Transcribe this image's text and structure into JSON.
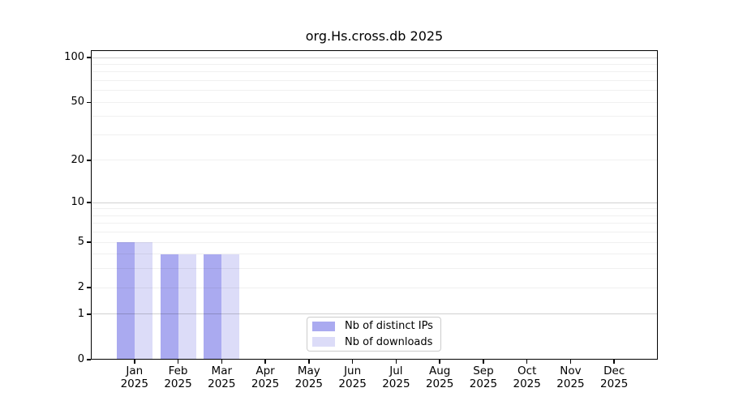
{
  "page": {
    "background": "#ffffff"
  },
  "chart_data": {
    "type": "bar",
    "title": "org.Hs.cross.db 2025",
    "categories": [
      "Jan",
      "Feb",
      "Mar",
      "Apr",
      "May",
      "Jun",
      "Jul",
      "Aug",
      "Sep",
      "Oct",
      "Nov",
      "Dec"
    ],
    "x_year": "2025",
    "series": [
      {
        "name": "Nb of distinct IPs",
        "color": "#aaaaf0",
        "values": [
          5,
          4,
          4,
          0,
          0,
          0,
          0,
          0,
          0,
          0,
          0,
          0
        ]
      },
      {
        "name": "Nb of downloads",
        "color": "#dcdcf8",
        "values": [
          5,
          4,
          4,
          0,
          0,
          0,
          0,
          0,
          0,
          0,
          0,
          0
        ]
      }
    ],
    "y_scale": "log1p",
    "ylim": [
      0,
      112
    ],
    "y_ticks": [
      0,
      1,
      2,
      5,
      10,
      20,
      50,
      100
    ],
    "y_gridlines_major": [
      1,
      10,
      100
    ],
    "y_gridlines_minor": [
      2,
      3,
      4,
      5,
      6,
      7,
      8,
      9,
      20,
      30,
      40,
      50,
      60,
      70,
      80,
      90
    ],
    "grid": "on",
    "legend_position": "lower center"
  },
  "colors": {
    "axis": "#000000",
    "text": "#000000",
    "major_grid": "rgba(0,0,0,0.18)",
    "minor_grid": "rgba(0,0,0,0.06)",
    "legend_border": "#cccccc",
    "plot_background": "#ffffff"
  }
}
